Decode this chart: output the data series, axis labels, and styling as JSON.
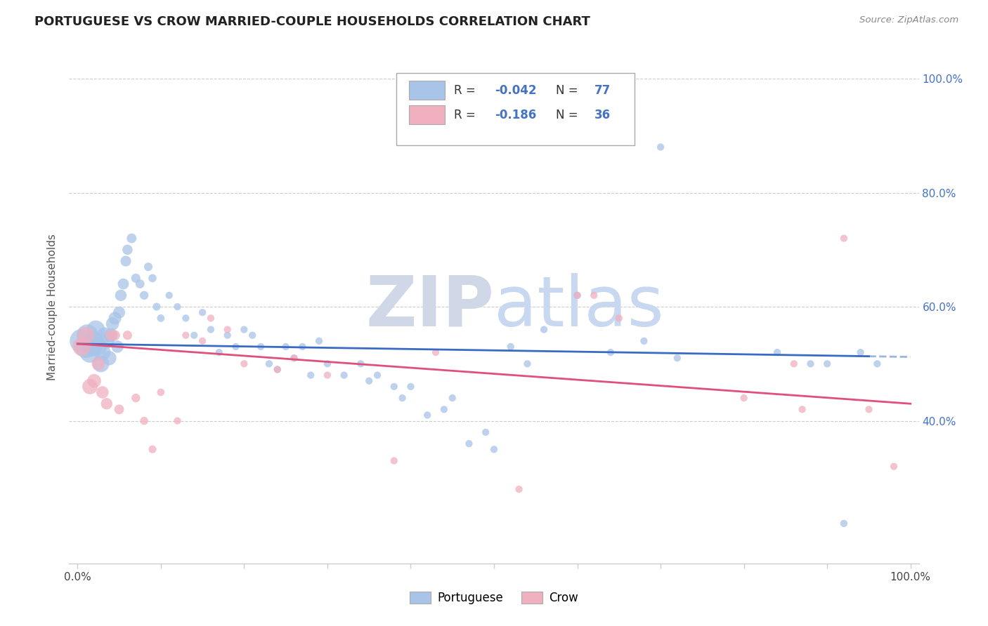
{
  "title": "PORTUGUESE VS CROW MARRIED-COUPLE HOUSEHOLDS CORRELATION CHART",
  "source": "Source: ZipAtlas.com",
  "ylabel": "Married-couple Households",
  "legend_label1": "Portuguese",
  "legend_label2": "Crow",
  "R1": -0.042,
  "N1": 77,
  "R2": -0.186,
  "N2": 36,
  "blue_color": "#a8c4e8",
  "pink_color": "#f0b0c0",
  "line_blue": "#3a6bc4",
  "line_pink": "#e0507a",
  "watermark_color": "#d0d8e8",
  "grid_color": "#cccccc",
  "background_color": "#ffffff",
  "blue_x": [
    0.005,
    0.01,
    0.012,
    0.015,
    0.018,
    0.02,
    0.022,
    0.025,
    0.028,
    0.03,
    0.033,
    0.035,
    0.038,
    0.04,
    0.042,
    0.045,
    0.048,
    0.05,
    0.052,
    0.055,
    0.058,
    0.06,
    0.065,
    0.07,
    0.075,
    0.08,
    0.085,
    0.09,
    0.095,
    0.1,
    0.11,
    0.12,
    0.13,
    0.14,
    0.15,
    0.16,
    0.17,
    0.18,
    0.19,
    0.2,
    0.21,
    0.22,
    0.23,
    0.24,
    0.25,
    0.26,
    0.27,
    0.28,
    0.29,
    0.3,
    0.32,
    0.34,
    0.35,
    0.36,
    0.38,
    0.39,
    0.4,
    0.42,
    0.44,
    0.45,
    0.47,
    0.49,
    0.5,
    0.52,
    0.54,
    0.56,
    0.6,
    0.64,
    0.68,
    0.7,
    0.72,
    0.84,
    0.88,
    0.9,
    0.92,
    0.94,
    0.96
  ],
  "blue_y": [
    0.54,
    0.53,
    0.55,
    0.52,
    0.53,
    0.54,
    0.56,
    0.53,
    0.5,
    0.52,
    0.55,
    0.54,
    0.51,
    0.55,
    0.57,
    0.58,
    0.53,
    0.59,
    0.62,
    0.64,
    0.68,
    0.7,
    0.72,
    0.65,
    0.64,
    0.62,
    0.67,
    0.65,
    0.6,
    0.58,
    0.62,
    0.6,
    0.58,
    0.55,
    0.59,
    0.56,
    0.52,
    0.55,
    0.53,
    0.56,
    0.55,
    0.53,
    0.5,
    0.49,
    0.53,
    0.51,
    0.53,
    0.48,
    0.54,
    0.5,
    0.48,
    0.5,
    0.47,
    0.48,
    0.46,
    0.44,
    0.46,
    0.41,
    0.42,
    0.44,
    0.36,
    0.38,
    0.35,
    0.53,
    0.5,
    0.56,
    0.62,
    0.52,
    0.54,
    0.88,
    0.51,
    0.52,
    0.5,
    0.5,
    0.22,
    0.52,
    0.5
  ],
  "blue_sizes": [
    600,
    550,
    500,
    450,
    400,
    380,
    350,
    320,
    300,
    280,
    260,
    240,
    220,
    200,
    180,
    170,
    160,
    150,
    140,
    130,
    120,
    110,
    100,
    90,
    85,
    80,
    75,
    70,
    65,
    60,
    55,
    55,
    55,
    55,
    55,
    55,
    55,
    55,
    55,
    55,
    55,
    55,
    55,
    55,
    55,
    55,
    55,
    55,
    55,
    55,
    55,
    55,
    55,
    55,
    55,
    55,
    55,
    55,
    55,
    55,
    55,
    55,
    55,
    55,
    55,
    55,
    55,
    55,
    55,
    55,
    55,
    55,
    55,
    55,
    55,
    55,
    55
  ],
  "pink_x": [
    0.005,
    0.01,
    0.015,
    0.02,
    0.025,
    0.03,
    0.035,
    0.04,
    0.045,
    0.05,
    0.06,
    0.07,
    0.08,
    0.09,
    0.1,
    0.12,
    0.13,
    0.15,
    0.16,
    0.18,
    0.2,
    0.24,
    0.26,
    0.3,
    0.38,
    0.43,
    0.53,
    0.6,
    0.62,
    0.65,
    0.8,
    0.86,
    0.87,
    0.92,
    0.95,
    0.98
  ],
  "pink_y": [
    0.53,
    0.55,
    0.46,
    0.47,
    0.5,
    0.45,
    0.43,
    0.55,
    0.55,
    0.42,
    0.55,
    0.44,
    0.4,
    0.35,
    0.45,
    0.4,
    0.55,
    0.54,
    0.58,
    0.56,
    0.5,
    0.49,
    0.51,
    0.48,
    0.33,
    0.52,
    0.28,
    0.62,
    0.62,
    0.58,
    0.44,
    0.5,
    0.42,
    0.72,
    0.42,
    0.32
  ],
  "pink_sizes": [
    350,
    300,
    250,
    200,
    180,
    160,
    140,
    120,
    110,
    100,
    90,
    80,
    70,
    65,
    60,
    55,
    55,
    55,
    55,
    55,
    55,
    55,
    55,
    55,
    55,
    55,
    55,
    55,
    55,
    55,
    55,
    55,
    55,
    55,
    55,
    55
  ]
}
